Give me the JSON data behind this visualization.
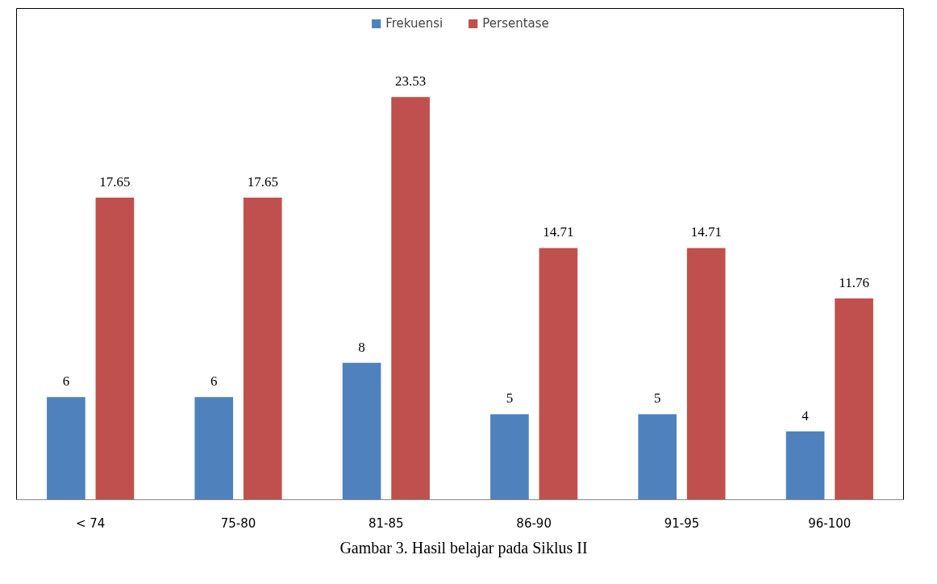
{
  "chart_data": {
    "type": "bar",
    "categories": [
      "< 74",
      "75-80",
      "81-85",
      "86-90",
      "91-95",
      "96-100"
    ],
    "series": [
      {
        "name": "Frekuensi",
        "color": "#4f81bd",
        "values": [
          6,
          6,
          8,
          5,
          5,
          4
        ]
      },
      {
        "name": "Persentase",
        "color": "#c0504d",
        "values": [
          17.65,
          17.65,
          23.53,
          14.71,
          14.71,
          11.76
        ]
      }
    ],
    "data_labels": true,
    "legend": "top",
    "grid": false,
    "tick_labels": "x",
    "annotations": [
      "Gambar 3. Hasil belajar pada Siklus II"
    ]
  }
}
